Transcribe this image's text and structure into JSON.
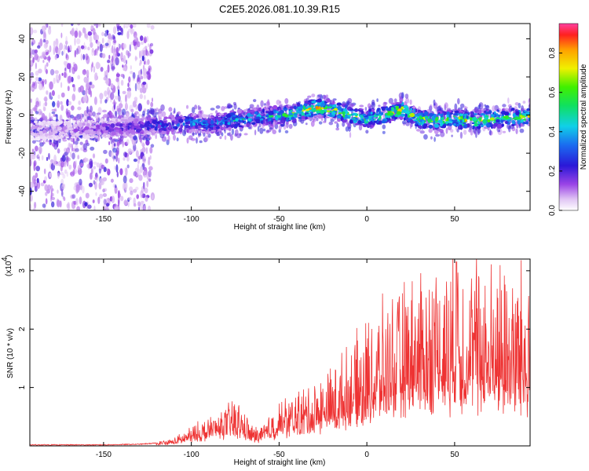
{
  "title": "C2E5.2026.081.10.39.R15",
  "chart_data": [
    {
      "type": "heatmap",
      "name": "spectrogram",
      "xlabel": "Height of straight line (km)",
      "ylabel": "Frequency (Hz)",
      "xlim": [
        -192,
        93
      ],
      "ylim": [
        -50,
        48
      ],
      "xticks": [
        -150,
        -100,
        -50,
        0,
        50
      ],
      "yticks": [
        -40,
        -20,
        0,
        20,
        40
      ],
      "colorbar": {
        "label": "Normalized spectral amplitude",
        "range": [
          0,
          0.95
        ],
        "ticks": [
          0.0,
          0.2,
          0.4,
          0.6,
          0.8
        ],
        "tick_labels": [
          "0.0",
          "0.2",
          "0.4",
          "0.6",
          "0.8"
        ]
      },
      "ridge": {
        "x": [
          -190,
          -170,
          -150,
          -130,
          -110,
          -100,
          -90,
          -80,
          -70,
          -60,
          -50,
          -40,
          -30,
          -20,
          -10,
          0,
          10,
          20,
          30,
          40,
          50,
          60,
          70,
          80,
          90
        ],
        "y": [
          -8,
          -8,
          -7,
          -6,
          -5,
          -4,
          -5,
          -3,
          -2,
          -1,
          0,
          1,
          4,
          3,
          0,
          -2,
          0,
          3,
          -2,
          -3,
          -2,
          -3,
          -2,
          -1,
          -1
        ],
        "peak_amplitude": [
          0.12,
          0.12,
          0.2,
          0.3,
          0.4,
          0.45,
          0.45,
          0.5,
          0.55,
          0.55,
          0.6,
          0.7,
          0.85,
          0.8,
          0.75,
          0.7,
          0.75,
          0.85,
          0.7,
          0.75,
          0.75,
          0.8,
          0.75,
          0.7,
          0.75
        ],
        "noise_region_until_x": -130
      }
    },
    {
      "type": "line",
      "name": "snr",
      "xlabel": "Height of straight line (km)",
      "ylabel": "SNR (10 * v/v)",
      "y_scale_label": "(x10",
      "y_scale_exponent": "4",
      "xlim": [
        -192,
        93
      ],
      "ylim": [
        0,
        3.2
      ],
      "xticks": [
        -150,
        -100,
        -50,
        0,
        50
      ],
      "yticks": [
        1,
        2,
        3
      ],
      "color": "#ee3333",
      "envelope": {
        "x": [
          -192,
          -150,
          -130,
          -120,
          -110,
          -100,
          -90,
          -80,
          -75,
          -70,
          -65,
          -60,
          -50,
          -40,
          -30,
          -20,
          -10,
          0,
          10,
          20,
          30,
          40,
          50,
          60,
          70,
          80,
          93
        ],
        "y": [
          0.01,
          0.01,
          0.02,
          0.04,
          0.08,
          0.2,
          0.3,
          0.4,
          0.5,
          0.35,
          0.2,
          0.2,
          0.45,
          0.55,
          0.65,
          0.8,
          1.0,
          1.25,
          1.45,
          1.6,
          1.75,
          1.85,
          1.9,
          1.9,
          1.85,
          1.85,
          1.8
        ]
      },
      "peak": {
        "x": 51,
        "y": 3.15
      }
    }
  ]
}
